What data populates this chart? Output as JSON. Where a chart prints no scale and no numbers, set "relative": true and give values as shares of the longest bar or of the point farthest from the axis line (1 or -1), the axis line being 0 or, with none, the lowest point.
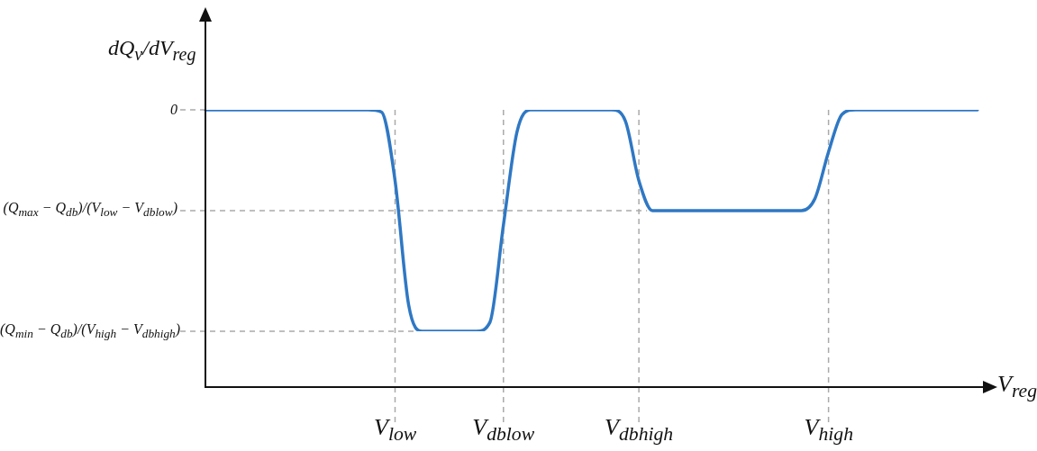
{
  "chart_data": {
    "type": "line",
    "relative": true,
    "ylabel": "dQ$_{v}$/dV$_{reg}$",
    "xlabel": "V$_{reg}$",
    "categories": [
      null,
      null,
      null,
      null,
      null,
      null,
      null,
      null,
      null,
      null,
      null,
      null,
      null,
      null,
      "V$_{low}$",
      null,
      null,
      null,
      null,
      null,
      null,
      null,
      "V$_{dblow}$",
      null,
      null,
      null,
      null,
      null,
      null,
      null,
      null,
      null,
      "V$_{dbhigh}$",
      null,
      null,
      null,
      null,
      null,
      null,
      null,
      null,
      null,
      null,
      null,
      null,
      null,
      "V$_{high}$",
      null,
      null,
      null,
      null,
      null,
      null,
      null,
      null,
      null,
      null,
      null
    ],
    "values": [
      0,
      0,
      0,
      0,
      0,
      0,
      0,
      0,
      0,
      0,
      0,
      0,
      0,
      -0.01,
      -0.32,
      -0.88,
      -1,
      -1,
      -1,
      -1,
      -1,
      -0.96,
      -0.52,
      -0.1,
      0,
      0,
      0,
      0,
      0,
      0,
      0,
      -0.05,
      -0.32,
      -0.455,
      -0.455,
      -0.455,
      -0.455,
      -0.455,
      -0.455,
      -0.455,
      -0.455,
      -0.455,
      -0.455,
      -0.455,
      -0.455,
      -0.4,
      -0.19,
      -0.02,
      0,
      0,
      0,
      0,
      0,
      0,
      0,
      0,
      0,
      0
    ],
    "color": "#2f78c4",
    "marker": "none",
    "line_style": "solid",
    "ref_lines": [
      {
        "axis": "y",
        "value": 0,
        "label": "0",
        "color": "#aaaaaa",
        "line_style": "dashed"
      },
      {
        "axis": "y",
        "value": -0.455,
        "label": "(Q$_{max}$ − Q$_{db}$)/(V$_{low}$ − V$_{dblow}$)",
        "color": "#aaaaaa",
        "line_style": "dashed"
      },
      {
        "axis": "y",
        "value": -1,
        "label": "(Q$_{min}$ − Q$_{db}$)/(V$_{high}$ − V$_{dbhigh}$)",
        "color": "#aaaaaa",
        "line_style": "dashed"
      },
      {
        "axis": "x",
        "value": "V$_{low}$",
        "color": "#aaaaaa",
        "line_style": "dashed"
      },
      {
        "axis": "x",
        "value": "V$_{dblow}$",
        "color": "#aaaaaa",
        "line_style": "dashed"
      },
      {
        "axis": "x",
        "value": "V$_{dbhigh}$",
        "color": "#aaaaaa",
        "line_style": "dashed"
      },
      {
        "axis": "x",
        "value": "V$_{high}$",
        "color": "#aaaaaa",
        "line_style": "dashed"
      }
    ]
  }
}
